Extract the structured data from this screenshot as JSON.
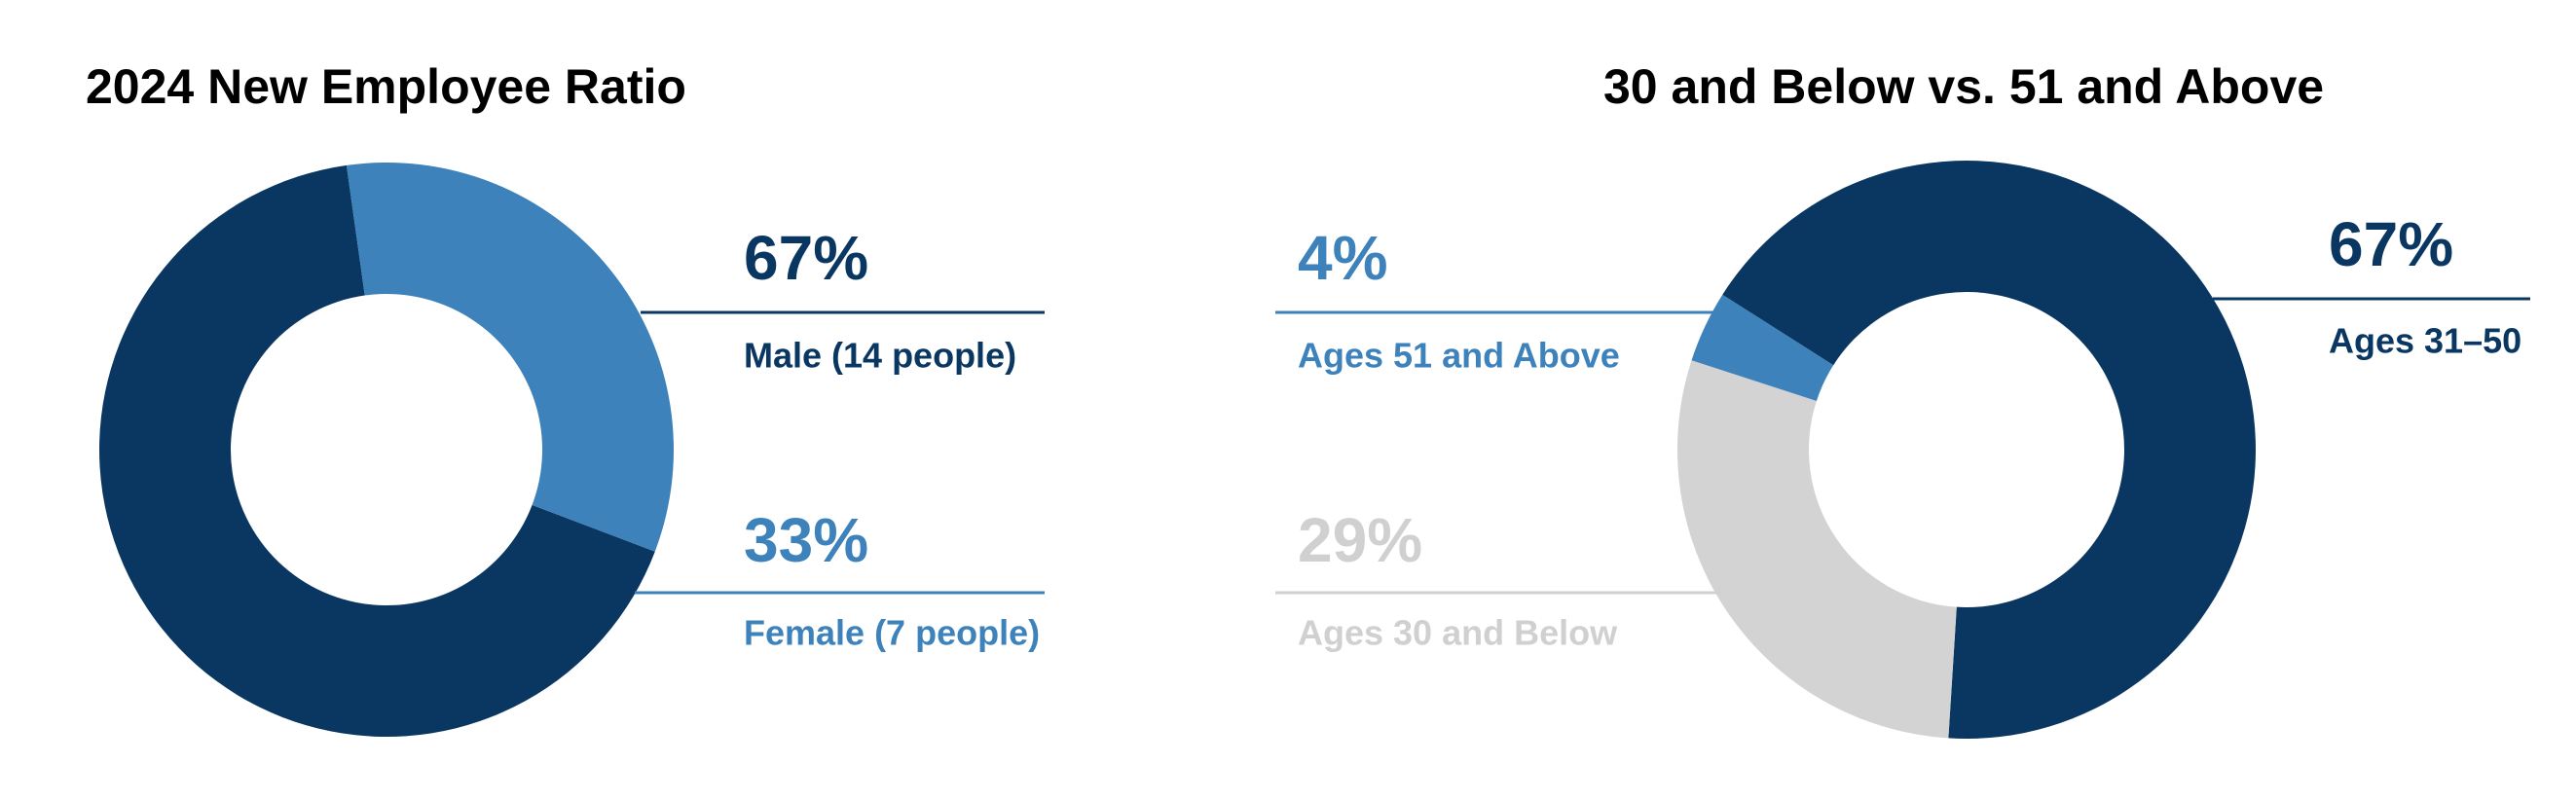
{
  "chart_data": [
    {
      "type": "pie",
      "donut": true,
      "title": "2024 New Employee Ratio",
      "categories": [
        "Male (14 people)",
        "Female (7 people)"
      ],
      "values": [
        67,
        33
      ],
      "value_labels": [
        "67%",
        "33%"
      ],
      "colors": [
        "#0a3761",
        "#3d82bb"
      ]
    },
    {
      "type": "pie",
      "donut": true,
      "title": "30 and Below vs. 51 and Above",
      "categories": [
        "Ages 31–50",
        "Ages 51 and Above",
        "Ages 30 and Below"
      ],
      "values": [
        67,
        4,
        29
      ],
      "value_labels": [
        "67%",
        "4%",
        "29%"
      ],
      "colors": [
        "#0a3761",
        "#3d82bb",
        "#d3d3d3"
      ]
    }
  ]
}
